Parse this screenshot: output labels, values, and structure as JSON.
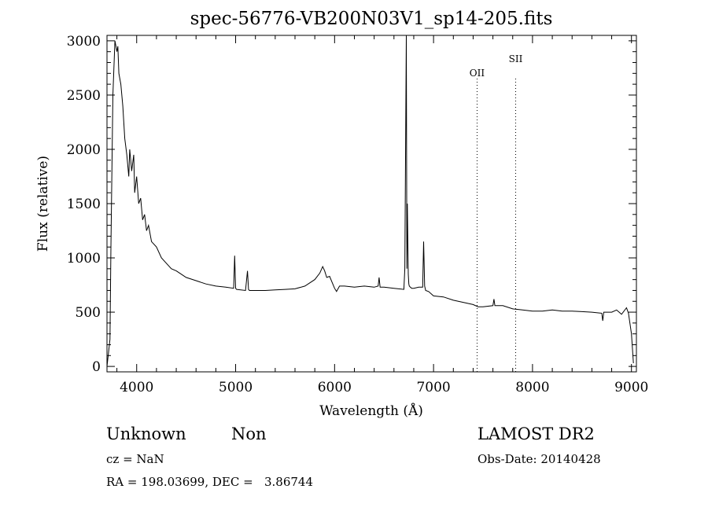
{
  "chart_data": {
    "type": "line",
    "title": "spec-56776-VB200N03V1_sp14-205.fits",
    "xlabel": "Wavelength (Å)",
    "ylabel": "Flux (relative)",
    "xlim": [
      3700,
      9050
    ],
    "ylim": [
      -50,
      3050
    ],
    "xticks": [
      4000,
      5000,
      6000,
      7000,
      8000,
      9000
    ],
    "yticks": [
      0,
      500,
      1000,
      1500,
      2000,
      2500,
      3000
    ],
    "grid": false,
    "line_markers": [
      {
        "label": "OII",
        "x": 7440
      },
      {
        "label": "SII",
        "x": 7830
      }
    ],
    "series": [
      {
        "name": "",
        "x": [
          3700,
          3730,
          3740,
          3760,
          3780,
          3800,
          3810,
          3820,
          3840,
          3860,
          3880,
          3900,
          3920,
          3930,
          3950,
          3970,
          3980,
          4000,
          4020,
          4040,
          4060,
          4080,
          4100,
          4120,
          4150,
          4200,
          4250,
          4300,
          4350,
          4400,
          4450,
          4500,
          4600,
          4700,
          4800,
          4900,
          4980,
          4990,
          5000,
          5010,
          5100,
          5120,
          5130,
          5140,
          5200,
          5300,
          5400,
          5500,
          5600,
          5700,
          5800,
          5850,
          5880,
          5900,
          5920,
          5950,
          6000,
          6020,
          6050,
          6100,
          6200,
          6300,
          6400,
          6440,
          6450,
          6460,
          6500,
          6600,
          6700,
          6710,
          6725,
          6730,
          6735,
          6745,
          6750,
          6755,
          6765,
          6780,
          6800,
          6850,
          6890,
          6900,
          6910,
          6920,
          6950,
          7000,
          7100,
          7200,
          7300,
          7400,
          7450,
          7500,
          7600,
          7610,
          7620,
          7700,
          7800,
          7900,
          8000,
          8100,
          8200,
          8300,
          8400,
          8500,
          8600,
          8700,
          8710,
          8720,
          8800,
          8850,
          8900,
          8950,
          8970,
          9000,
          9020
        ],
        "values": [
          0,
          250,
          1100,
          2500,
          3000,
          2900,
          2950,
          2700,
          2600,
          2400,
          2100,
          1950,
          1750,
          2000,
          1800,
          1950,
          1600,
          1750,
          1500,
          1550,
          1350,
          1400,
          1250,
          1300,
          1150,
          1100,
          1000,
          950,
          900,
          880,
          850,
          820,
          790,
          760,
          740,
          730,
          720,
          1020,
          720,
          710,
          700,
          880,
          710,
          700,
          700,
          700,
          705,
          710,
          715,
          740,
          800,
          860,
          920,
          880,
          820,
          830,
          720,
          690,
          740,
          740,
          730,
          740,
          730,
          740,
          820,
          730,
          730,
          720,
          710,
          900,
          3050,
          900,
          1500,
          850,
          760,
          740,
          730,
          720,
          720,
          730,
          730,
          1150,
          740,
          700,
          690,
          650,
          640,
          610,
          590,
          570,
          550,
          550,
          560,
          620,
          560,
          560,
          530,
          520,
          510,
          510,
          520,
          510,
          510,
          505,
          500,
          490,
          420,
          500,
          500,
          520,
          480,
          540,
          490,
          300,
          30
        ]
      }
    ]
  },
  "info": {
    "class": "Unknown",
    "subclass": "Non",
    "survey": "LAMOST DR2",
    "cz": "cz = NaN",
    "obs_date": "Obs-Date: 20140428",
    "coords": "RA = 198.03699, DEC =   3.86744"
  }
}
